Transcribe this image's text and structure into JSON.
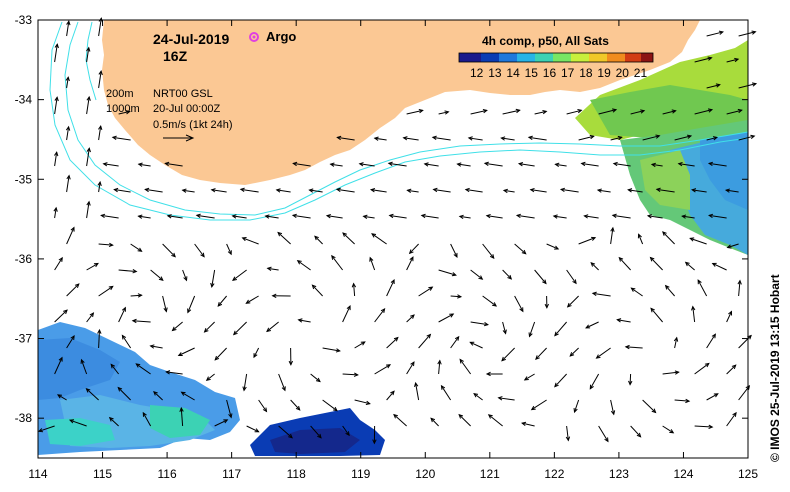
{
  "map": {
    "date": "24-Jul-2019",
    "hour": "16Z",
    "argo_label": "Argo",
    "colorbar": {
      "title": "4h comp, p50, All Sats",
      "ticks": [
        "12",
        "13",
        "14",
        "15",
        "16",
        "17",
        "18",
        "19",
        "20",
        "21"
      ],
      "colors": [
        "#1a1a8c",
        "#0a3cb4",
        "#1e78dc",
        "#28b4e6",
        "#3cd2b4",
        "#78e664",
        "#c8f03c",
        "#f0c828",
        "#f08c1e",
        "#d23c14",
        "#8c1414"
      ]
    },
    "legend": {
      "contour_200": "200m",
      "contour_1000": "1000m",
      "product": "NRT00 GSL",
      "product_date": "20-Jul 00:00Z",
      "scale": "0.5m/s (1kt 24h)"
    },
    "x_ticks": [
      "114",
      "115",
      "116",
      "117",
      "118",
      "119",
      "120",
      "121",
      "122",
      "123",
      "124",
      "125"
    ],
    "y_ticks": [
      "-33",
      "-34",
      "-35",
      "-36",
      "-37",
      "-38"
    ],
    "credit": "© IMOS 25-Jul-2019 13:15 Hobart",
    "colors": {
      "land": "#fbc894",
      "contour": "#40e0e8",
      "argo": "#e040e0"
    }
  }
}
